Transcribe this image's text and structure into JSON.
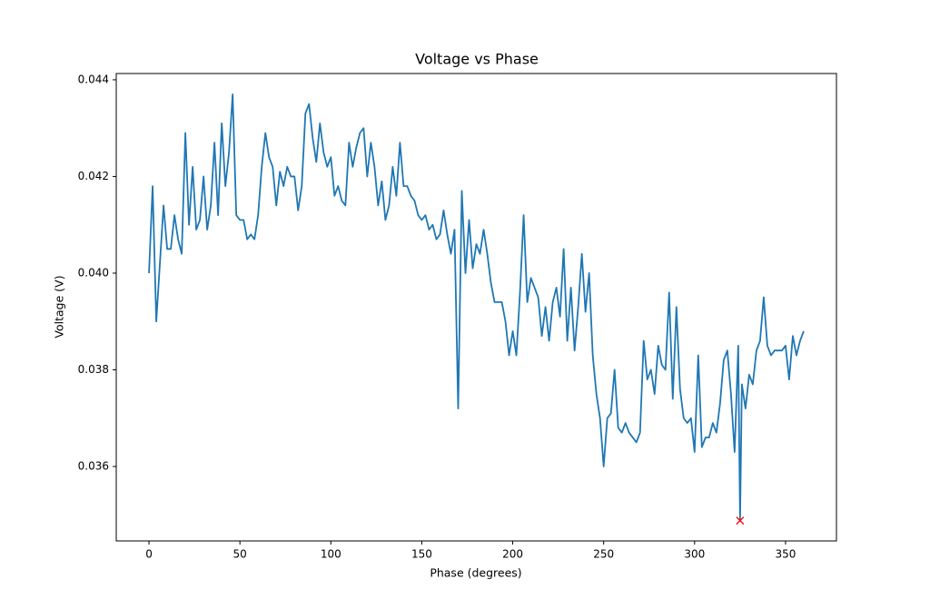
{
  "chart_data": {
    "type": "line",
    "title": "Voltage vs Phase",
    "x_label": "Phase (degrees)",
    "y_label": "Voltage (V)",
    "xlim": [
      -18,
      378
    ],
    "ylim": [
      0.03446,
      0.04413
    ],
    "xticks": [
      0,
      50,
      100,
      150,
      200,
      250,
      300,
      350
    ],
    "yticks": [
      0.036,
      0.038,
      {
        "value": 0.04,
        "label": "0.040"
      },
      0.042,
      0.044
    ],
    "grid": false,
    "series": [
      {
        "color": "#1f77b4",
        "marker": "none",
        "x": [
          0,
          2,
          4,
          6,
          8,
          10,
          12,
          14,
          16,
          18,
          20,
          22,
          24,
          26,
          28,
          30,
          32,
          34,
          36,
          38,
          40,
          42,
          44,
          46,
          48,
          50,
          52,
          54,
          56,
          58,
          60,
          62,
          64,
          66,
          68,
          70,
          72,
          74,
          76,
          78,
          80,
          82,
          84,
          86,
          88,
          90,
          92,
          94,
          96,
          98,
          100,
          102,
          104,
          106,
          108,
          110,
          112,
          114,
          116,
          118,
          120,
          122,
          124,
          126,
          128,
          130,
          132,
          134,
          136,
          138,
          140,
          142,
          144,
          146,
          148,
          150,
          152,
          154,
          156,
          158,
          160,
          162,
          164,
          166,
          168,
          170,
          172,
          174,
          176,
          178,
          180,
          182,
          184,
          186,
          188,
          190,
          192,
          194,
          196,
          198,
          200,
          202,
          204,
          206,
          208,
          210,
          212,
          214,
          216,
          218,
          220,
          222,
          224,
          226,
          228,
          230,
          232,
          234,
          236,
          238,
          240,
          242,
          244,
          246,
          248,
          250,
          252,
          254,
          256,
          258,
          260,
          262,
          264,
          266,
          268,
          270,
          272,
          274,
          276,
          278,
          280,
          282,
          284,
          286,
          288,
          290,
          292,
          294,
          296,
          298,
          300,
          302,
          304,
          306,
          308,
          310,
          312,
          314,
          316,
          318,
          320,
          322,
          324,
          325,
          326,
          328,
          330,
          332,
          334,
          336,
          338,
          340,
          342,
          344,
          346,
          348,
          350,
          352,
          354,
          356,
          358,
          360
        ],
        "values": [
          0.04,
          0.0418,
          0.039,
          0.0402,
          0.0414,
          0.0405,
          0.0405,
          0.0412,
          0.0407,
          0.0404,
          0.0429,
          0.041,
          0.0422,
          0.0409,
          0.0411,
          0.042,
          0.0409,
          0.0414,
          0.0427,
          0.0412,
          0.0431,
          0.0418,
          0.0425,
          0.0437,
          0.0412,
          0.0411,
          0.0411,
          0.0407,
          0.0408,
          0.0407,
          0.0412,
          0.0422,
          0.0429,
          0.0424,
          0.0422,
          0.0414,
          0.0421,
          0.0418,
          0.0422,
          0.042,
          0.042,
          0.0413,
          0.0418,
          0.0433,
          0.0435,
          0.0428,
          0.0423,
          0.0431,
          0.0425,
          0.0422,
          0.0424,
          0.0416,
          0.0418,
          0.0415,
          0.0414,
          0.0427,
          0.0422,
          0.0426,
          0.0429,
          0.043,
          0.042,
          0.0427,
          0.0422,
          0.0414,
          0.0419,
          0.0411,
          0.0414,
          0.0422,
          0.0416,
          0.0427,
          0.0418,
          0.0418,
          0.0416,
          0.0415,
          0.0412,
          0.0411,
          0.0412,
          0.0409,
          0.041,
          0.0407,
          0.0408,
          0.0413,
          0.0408,
          0.0404,
          0.0409,
          0.0372,
          0.0417,
          0.04,
          0.0411,
          0.0401,
          0.0406,
          0.0404,
          0.0409,
          0.0404,
          0.0398,
          0.0394,
          0.0394,
          0.0394,
          0.039,
          0.0383,
          0.0388,
          0.0383,
          0.0396,
          0.0412,
          0.0394,
          0.0399,
          0.0397,
          0.0395,
          0.0387,
          0.0393,
          0.0386,
          0.0394,
          0.0397,
          0.0391,
          0.0405,
          0.0386,
          0.0397,
          0.0384,
          0.0393,
          0.0404,
          0.0392,
          0.04,
          0.0383,
          0.0375,
          0.037,
          0.036,
          0.037,
          0.0371,
          0.038,
          0.0368,
          0.0367,
          0.0369,
          0.0367,
          0.0366,
          0.0365,
          0.0367,
          0.0386,
          0.0378,
          0.038,
          0.0375,
          0.0385,
          0.0381,
          0.038,
          0.0396,
          0.0374,
          0.0393,
          0.0376,
          0.037,
          0.0369,
          0.037,
          0.0363,
          0.0383,
          0.0364,
          0.0366,
          0.0366,
          0.0369,
          0.0367,
          0.0373,
          0.0382,
          0.0384,
          0.0375,
          0.0363,
          0.0385,
          0.03488,
          0.0377,
          0.0372,
          0.0379,
          0.0377,
          0.0384,
          0.0386,
          0.0395,
          0.0385,
          0.0383,
          0.0384,
          0.0384,
          0.0384,
          0.0385,
          0.0378,
          0.0387,
          0.0383,
          0.0386,
          0.0388
        ]
      },
      {
        "color": "#ff0000",
        "marker": "x",
        "x": [
          325
        ],
        "values": [
          0.03488
        ]
      }
    ]
  }
}
